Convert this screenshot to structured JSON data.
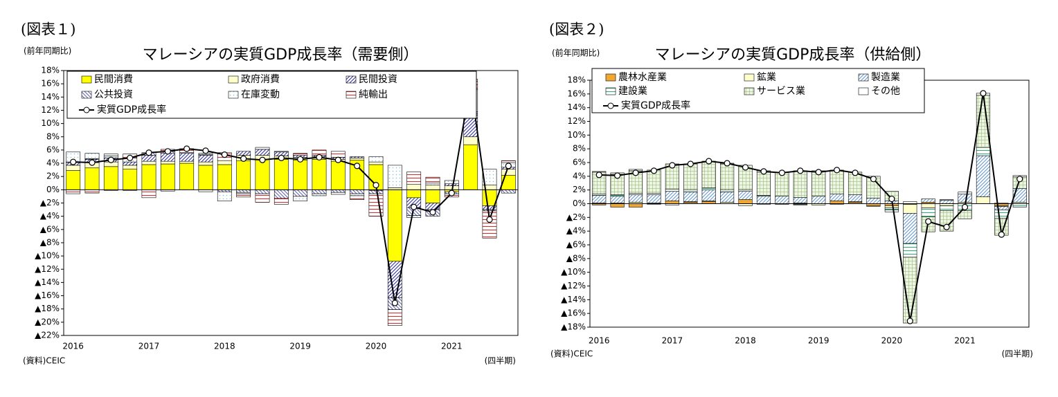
{
  "chart_data": [
    {
      "type": "bar",
      "figure_label": "(図表１)",
      "unit_label": "(前年同期比)",
      "title": "マレーシアの実質GDP成長率（需要側）",
      "source": "(資料)CEIC",
      "x_label": "(四半期)",
      "categories": [
        "2016",
        null,
        null,
        null,
        "2017",
        null,
        null,
        null,
        "2018",
        null,
        null,
        null,
        "2019",
        null,
        null,
        null,
        "2020",
        null,
        null,
        null,
        "2021",
        null,
        null,
        null
      ],
      "ylim": [
        -22,
        18
      ],
      "yticks": [
        {
          "value": 18,
          "label": "18%"
        },
        {
          "value": 16,
          "label": "16%"
        },
        {
          "value": 14,
          "label": "14%"
        },
        {
          "value": 12,
          "label": "12%"
        },
        {
          "value": 10,
          "label": "10%"
        },
        {
          "value": 8,
          "label": "8%"
        },
        {
          "value": 6,
          "label": "6%"
        },
        {
          "value": 4,
          "label": "4%"
        },
        {
          "value": 2,
          "label": "2%"
        },
        {
          "value": 0,
          "label": "0%"
        },
        {
          "value": -2,
          "label": "▲2%"
        },
        {
          "value": -4,
          "label": "▲4%"
        },
        {
          "value": -6,
          "label": "▲6%"
        },
        {
          "value": -8,
          "label": "▲8%"
        },
        {
          "value": -10,
          "label": "▲10%"
        },
        {
          "value": -12,
          "label": "▲12%"
        },
        {
          "value": -14,
          "label": "▲14%"
        },
        {
          "value": -16,
          "label": "▲16%"
        },
        {
          "value": -18,
          "label": "▲18%"
        },
        {
          "value": -20,
          "label": "▲20%"
        },
        {
          "value": -22,
          "label": "▲22%"
        }
      ],
      "series": [
        {
          "name": "民間消費",
          "color": "#ffff00",
          "hatch": "none",
          "values": [
            2.9,
            3.3,
            3.5,
            3.1,
            3.8,
            3.9,
            4.0,
            3.7,
            3.8,
            4.4,
            4.6,
            4.6,
            4.5,
            4.6,
            4.3,
            4.5,
            3.8,
            -10.8,
            -1.2,
            -2.0,
            -0.3,
            6.8,
            -2.4,
            2.2
          ]
        },
        {
          "name": "政府消費",
          "color": "#ffffcc",
          "hatch": "none",
          "values": [
            0.8,
            0.8,
            0.7,
            0.6,
            0.5,
            0.4,
            0.3,
            0.5,
            0.6,
            0.8,
            0.6,
            0.5,
            0.4,
            0.4,
            0.3,
            0.3,
            0.4,
            0.3,
            0.8,
            0.7,
            0.6,
            1.2,
            0.7,
            0.9
          ]
        },
        {
          "name": "民間投資",
          "color": "#333399",
          "hatch": "diagonal",
          "values": [
            0.4,
            0.5,
            0.6,
            0.5,
            0.9,
            1.2,
            1.2,
            1.0,
            0.0,
            0.6,
            0.9,
            0.6,
            0.3,
            0.2,
            0.3,
            0.2,
            -0.1,
            -5.5,
            -1.5,
            -1.0,
            0.3,
            3.3,
            -0.6,
            0.3
          ]
        },
        {
          "name": "公共投資",
          "color": "#6666aa",
          "hatch": "backdiagonal",
          "values": [
            0.1,
            0.1,
            -0.1,
            -0.1,
            0.4,
            0.3,
            0.0,
            0.1,
            -0.3,
            -0.4,
            -0.6,
            -1.3,
            -1.0,
            -0.6,
            -0.4,
            -0.6,
            -0.5,
            -1.8,
            -1.2,
            -1.0,
            -0.3,
            0.5,
            -0.2,
            -0.5
          ]
        },
        {
          "name": "在庫変動",
          "color": "#88c0d8",
          "hatch": "dots",
          "values": [
            1.5,
            0.8,
            0.3,
            0.6,
            0.0,
            -0.2,
            0.1,
            0.2,
            -1.4,
            -0.2,
            0.3,
            0.1,
            -0.7,
            -0.3,
            -0.3,
            -0.3,
            0.8,
            3.4,
            -0.3,
            0.3,
            0.5,
            3.3,
            2.4,
            0.7
          ]
        },
        {
          "name": "純輸出",
          "color": "#cc3333",
          "hatch": "horizontal",
          "values": [
            -0.6,
            -0.5,
            0.3,
            0.6,
            -1.2,
            0.3,
            0.6,
            -0.3,
            1.2,
            -0.5,
            -1.3,
            -0.9,
            0.3,
            0.8,
            0.9,
            -0.6,
            -3.4,
            -2.4,
            1.9,
            0.9,
            -0.5,
            1.6,
            -4.1,
            0.3
          ]
        },
        {
          "name": "実質GDP成長率",
          "type": "line",
          "color": "#000000",
          "values": [
            4.2,
            4.1,
            4.5,
            4.8,
            5.6,
            5.8,
            6.2,
            5.9,
            5.3,
            4.7,
            4.5,
            4.8,
            4.6,
            4.9,
            4.5,
            3.6,
            0.7,
            -17.1,
            -2.6,
            -3.4,
            -0.5,
            16.1,
            -4.5,
            3.6
          ]
        }
      ]
    },
    {
      "type": "bar",
      "figure_label": "(図表２)",
      "unit_label": "(前年同期比)",
      "title": "マレーシアの実質GDP成長率（供給側）",
      "source": "(資料)CEIC",
      "x_label": "(四半期)",
      "categories": [
        "2016",
        null,
        null,
        null,
        "2017",
        null,
        null,
        null,
        "2018",
        null,
        null,
        null,
        "2019",
        null,
        null,
        null,
        "2020",
        null,
        null,
        null,
        "2021",
        null,
        null,
        null
      ],
      "ylim": [
        -18,
        18
      ],
      "yticks": [
        {
          "value": 18,
          "label": "18%"
        },
        {
          "value": 16,
          "label": "16%"
        },
        {
          "value": 14,
          "label": "14%"
        },
        {
          "value": 12,
          "label": "12%"
        },
        {
          "value": 10,
          "label": "10%"
        },
        {
          "value": 8,
          "label": "8%"
        },
        {
          "value": 6,
          "label": "6%"
        },
        {
          "value": 4,
          "label": "4%"
        },
        {
          "value": 2,
          "label": "2%"
        },
        {
          "value": 0,
          "label": "0%"
        },
        {
          "value": -2,
          "label": "▲2%"
        },
        {
          "value": -4,
          "label": "▲4%"
        },
        {
          "value": -6,
          "label": "▲6%"
        },
        {
          "value": -8,
          "label": "▲8%"
        },
        {
          "value": -10,
          "label": "▲10%"
        },
        {
          "value": -12,
          "label": "▲12%"
        },
        {
          "value": -14,
          "label": "▲14%"
        },
        {
          "value": -16,
          "label": "▲16%"
        },
        {
          "value": -18,
          "label": "▲18%"
        }
      ],
      "series": [
        {
          "name": "農林水産業",
          "color": "#f0a830",
          "hatch": "none",
          "values": [
            -0.2,
            -0.5,
            -0.5,
            0.0,
            0.4,
            0.2,
            0.3,
            0.0,
            0.6,
            0.0,
            -0.1,
            -0.1,
            0.0,
            0.4,
            0.2,
            -0.3,
            -0.3,
            -0.1,
            0.2,
            0.0,
            0.0,
            0.0,
            -0.3,
            0.0
          ]
        },
        {
          "name": "鉱業",
          "color": "#ffffcc",
          "hatch": "none",
          "values": [
            0.1,
            0.1,
            0.2,
            0.1,
            0.0,
            0.1,
            0.1,
            0.2,
            -0.3,
            -0.1,
            0.0,
            0.1,
            -0.2,
            -0.1,
            0.1,
            -0.1,
            -0.3,
            -1.3,
            -0.6,
            -0.3,
            0.2,
            1.0,
            -0.1,
            0.2
          ]
        },
        {
          "name": "製造業",
          "color": "#6699cc",
          "hatch": "diagonal",
          "values": [
            1.1,
            1.0,
            1.1,
            1.2,
            1.4,
            1.4,
            1.6,
            1.5,
            1.2,
            1.1,
            1.1,
            0.8,
            1.1,
            1.0,
            1.0,
            0.8,
            0.4,
            -4.4,
            0.5,
            0.5,
            1.2,
            6.0,
            -0.5,
            2.0
          ]
        },
        {
          "name": "建設業",
          "color": "#33aa77",
          "hatch": "horizontal",
          "values": [
            0.2,
            0.2,
            0.2,
            0.2,
            0.3,
            0.3,
            0.3,
            0.3,
            0.2,
            0.1,
            0.0,
            -0.1,
            0.0,
            0.0,
            0.0,
            0.0,
            -0.3,
            -2.0,
            -1.3,
            -0.7,
            -1.0,
            1.2,
            -1.2,
            -0.5
          ]
        },
        {
          "name": "サービス業",
          "color": "#99bb77",
          "hatch": "grid",
          "values": [
            3.2,
            3.0,
            3.3,
            3.4,
            3.7,
            3.8,
            3.9,
            3.8,
            3.6,
            3.4,
            3.5,
            3.8,
            3.6,
            3.5,
            3.3,
            3.2,
            1.4,
            -9.6,
            -2.2,
            -3.0,
            -1.2,
            7.6,
            -2.5,
            1.7
          ]
        },
        {
          "name": "その他",
          "color": "#ffffff",
          "hatch": "none",
          "values": [
            0.1,
            0.2,
            0.2,
            -0.1,
            -0.2,
            0.0,
            0.0,
            0.1,
            0.0,
            0.2,
            0.0,
            0.1,
            0.1,
            0.0,
            0.0,
            0.0,
            -0.3,
            0.3,
            0.0,
            0.1,
            0.3,
            0.3,
            0.1,
            0.2
          ]
        },
        {
          "name": "実質GDP成長率",
          "type": "line",
          "color": "#000000",
          "values": [
            4.2,
            4.1,
            4.5,
            4.8,
            5.6,
            5.8,
            6.2,
            5.9,
            5.3,
            4.7,
            4.5,
            4.8,
            4.6,
            4.9,
            4.5,
            3.6,
            0.7,
            -17.1,
            -2.6,
            -3.4,
            -0.5,
            16.1,
            -4.5,
            3.6
          ]
        }
      ]
    }
  ]
}
